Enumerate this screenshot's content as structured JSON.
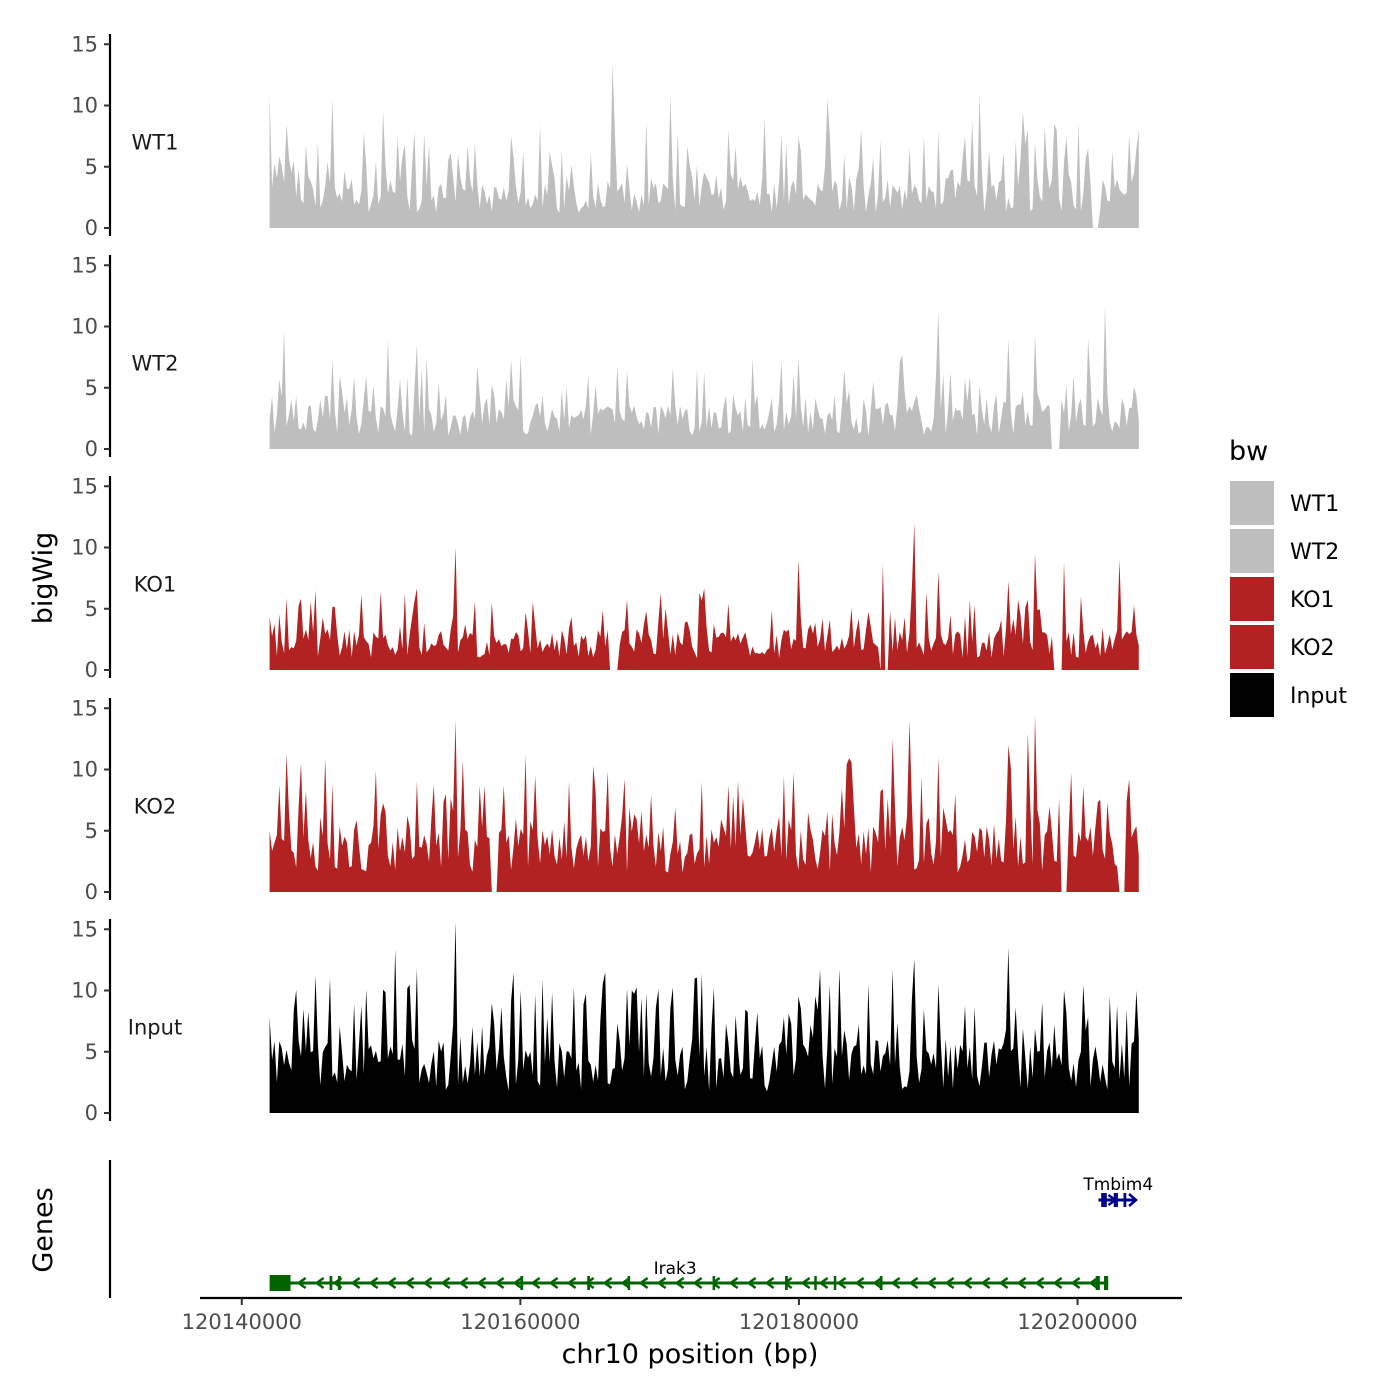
{
  "chart_data": {
    "type": "area",
    "xlabel": "chr10 position (bp)",
    "ylabel": "bigWig",
    "genes_label": "Genes",
    "xlim": [
      120137000,
      120207500
    ],
    "data_range": [
      120142000,
      120204400
    ],
    "x_ticks": [
      {
        "value": 120140000,
        "label": "120140000"
      },
      {
        "value": 120160000,
        "label": "120160000"
      },
      {
        "value": 120180000,
        "label": "120180000"
      },
      {
        "value": 120200000,
        "label": "120200000"
      }
    ],
    "ylim": [
      0,
      16
    ],
    "y_ticks": [
      {
        "value": 0,
        "label": "0"
      },
      {
        "value": 5,
        "label": "5"
      },
      {
        "value": 10,
        "label": "10"
      },
      {
        "value": 15,
        "label": "15"
      }
    ],
    "legend": {
      "title": "bw",
      "entries": [
        {
          "label": "WT1",
          "color": "#bebebe"
        },
        {
          "label": "WT2",
          "color": "#bebebe"
        },
        {
          "label": "KO1",
          "color": "#b22222"
        },
        {
          "label": "KO2",
          "color": "#b22222"
        },
        {
          "label": "Input",
          "color": "#000000"
        }
      ]
    },
    "series": [
      {
        "name": "WT1",
        "color": "#bebebe",
        "base": 3.5,
        "peaks": [
          [
            120142000,
            10.8
          ],
          [
            120143300,
            8.5
          ],
          [
            120146500,
            10.6
          ],
          [
            120150200,
            9.5
          ],
          [
            120151200,
            7.5
          ],
          [
            120155500,
            6.0
          ],
          [
            120166700,
            13.4
          ],
          [
            120170800,
            10.8
          ],
          [
            120175000,
            8.0
          ],
          [
            120177500,
            9.0
          ],
          [
            120182000,
            10.5
          ],
          [
            120184500,
            8.0
          ],
          [
            120193000,
            10.9
          ],
          [
            120196000,
            9.5
          ],
          [
            120198500,
            8.0
          ],
          [
            120204000,
            4.5
          ]
        ],
        "gaps": [
          [
            120201000,
            120201500
          ]
        ]
      },
      {
        "name": "WT2",
        "color": "#bebebe",
        "base": 3.0,
        "peaks": [
          [
            120143000,
            9.6
          ],
          [
            120146500,
            7.3
          ],
          [
            120150500,
            8.9
          ],
          [
            120152500,
            8.5
          ],
          [
            120153300,
            7.4
          ],
          [
            120160000,
            7.6
          ],
          [
            120167000,
            6.8
          ],
          [
            120171000,
            6.6
          ],
          [
            120180000,
            7.5
          ],
          [
            120187500,
            7.7
          ],
          [
            120190000,
            11.2
          ],
          [
            120195000,
            9.0
          ],
          [
            120197000,
            9.4
          ],
          [
            120200800,
            9.0
          ],
          [
            120202000,
            11.7
          ],
          [
            120204200,
            4.3
          ]
        ],
        "gaps": [
          [
            120198000,
            120198700
          ]
        ]
      },
      {
        "name": "KO1",
        "color": "#b22222",
        "base": 2.8,
        "peaks": [
          [
            120142000,
            4.3
          ],
          [
            120145000,
            5.6
          ],
          [
            120150000,
            6.4
          ],
          [
            120155300,
            10.0
          ],
          [
            120158000,
            5.5
          ],
          [
            120170000,
            6.3
          ],
          [
            120180000,
            9.0
          ],
          [
            120186000,
            8.7
          ],
          [
            120188200,
            12.0
          ],
          [
            120190000,
            8.0
          ],
          [
            120195000,
            7.3
          ],
          [
            120197000,
            9.5
          ],
          [
            120199000,
            8.8
          ],
          [
            120203000,
            9.0
          ],
          [
            120204400,
            2.0
          ]
        ],
        "gaps": [
          [
            120166400,
            120167000
          ],
          [
            120185800,
            120186400
          ],
          [
            120198300,
            120198900
          ]
        ]
      },
      {
        "name": "KO2",
        "color": "#b22222",
        "base": 4.5,
        "peaks": [
          [
            120142000,
            5.0
          ],
          [
            120143300,
            11.3
          ],
          [
            120146000,
            10.9
          ],
          [
            120150000,
            6.3
          ],
          [
            120155300,
            14.0
          ],
          [
            120161000,
            9.5
          ],
          [
            120163500,
            9.0
          ],
          [
            120173000,
            9.0
          ],
          [
            120183000,
            8.5
          ],
          [
            120186800,
            12.5
          ],
          [
            120188000,
            14.0
          ],
          [
            120190000,
            11.0
          ],
          [
            120195000,
            12.0
          ],
          [
            120196500,
            13.0
          ],
          [
            120197000,
            14.4
          ],
          [
            120198000,
            7.0
          ],
          [
            120201000,
            5.3
          ],
          [
            120204000,
            5.0
          ]
        ],
        "gaps": [
          [
            120157800,
            120158400
          ],
          [
            120198800,
            120199300
          ],
          [
            120203000,
            120203500
          ]
        ]
      },
      {
        "name": "Input",
        "color": "#000000",
        "base": 5.0,
        "peaks": [
          [
            120142000,
            7.8
          ],
          [
            120144500,
            8.5
          ],
          [
            120151000,
            13.4
          ],
          [
            120155300,
            15.6
          ],
          [
            120160000,
            10.0
          ],
          [
            120168000,
            10.0
          ],
          [
            120173000,
            11.4
          ],
          [
            120180000,
            9.5
          ],
          [
            120185000,
            10.5
          ],
          [
            120190000,
            10.5
          ],
          [
            120195000,
            13.5
          ],
          [
            120199000,
            10.0
          ],
          [
            120204300,
            10.0
          ]
        ],
        "gaps": []
      }
    ],
    "genes": [
      {
        "name": "Irak3",
        "strand": "-",
        "color": "#006400",
        "row": "bottom",
        "start": 120142000,
        "end": 120202200,
        "label_x": 120171000,
        "exons": [
          [
            120142000,
            120143500
          ],
          [
            120146300,
            120146500
          ],
          [
            120146900,
            120147100
          ],
          [
            120160000,
            120160200
          ],
          [
            120164800,
            120165000
          ],
          [
            120167700,
            120167800
          ],
          [
            120173800,
            120173900
          ],
          [
            120179000,
            120179200
          ],
          [
            120181100,
            120181200
          ],
          [
            120182500,
            120182600
          ],
          [
            120185800,
            120186000
          ],
          [
            120201300,
            120201600
          ],
          [
            120201900,
            120202200
          ]
        ]
      },
      {
        "name": "Tmbim4",
        "strand": "+",
        "color": "#00008b",
        "row": "top",
        "start": 120201500,
        "end": 120204200,
        "label_x": 120203000,
        "exons": [
          [
            120201700,
            120202100
          ],
          [
            120202600,
            120202900
          ],
          [
            120203300,
            120203500
          ]
        ]
      }
    ]
  }
}
